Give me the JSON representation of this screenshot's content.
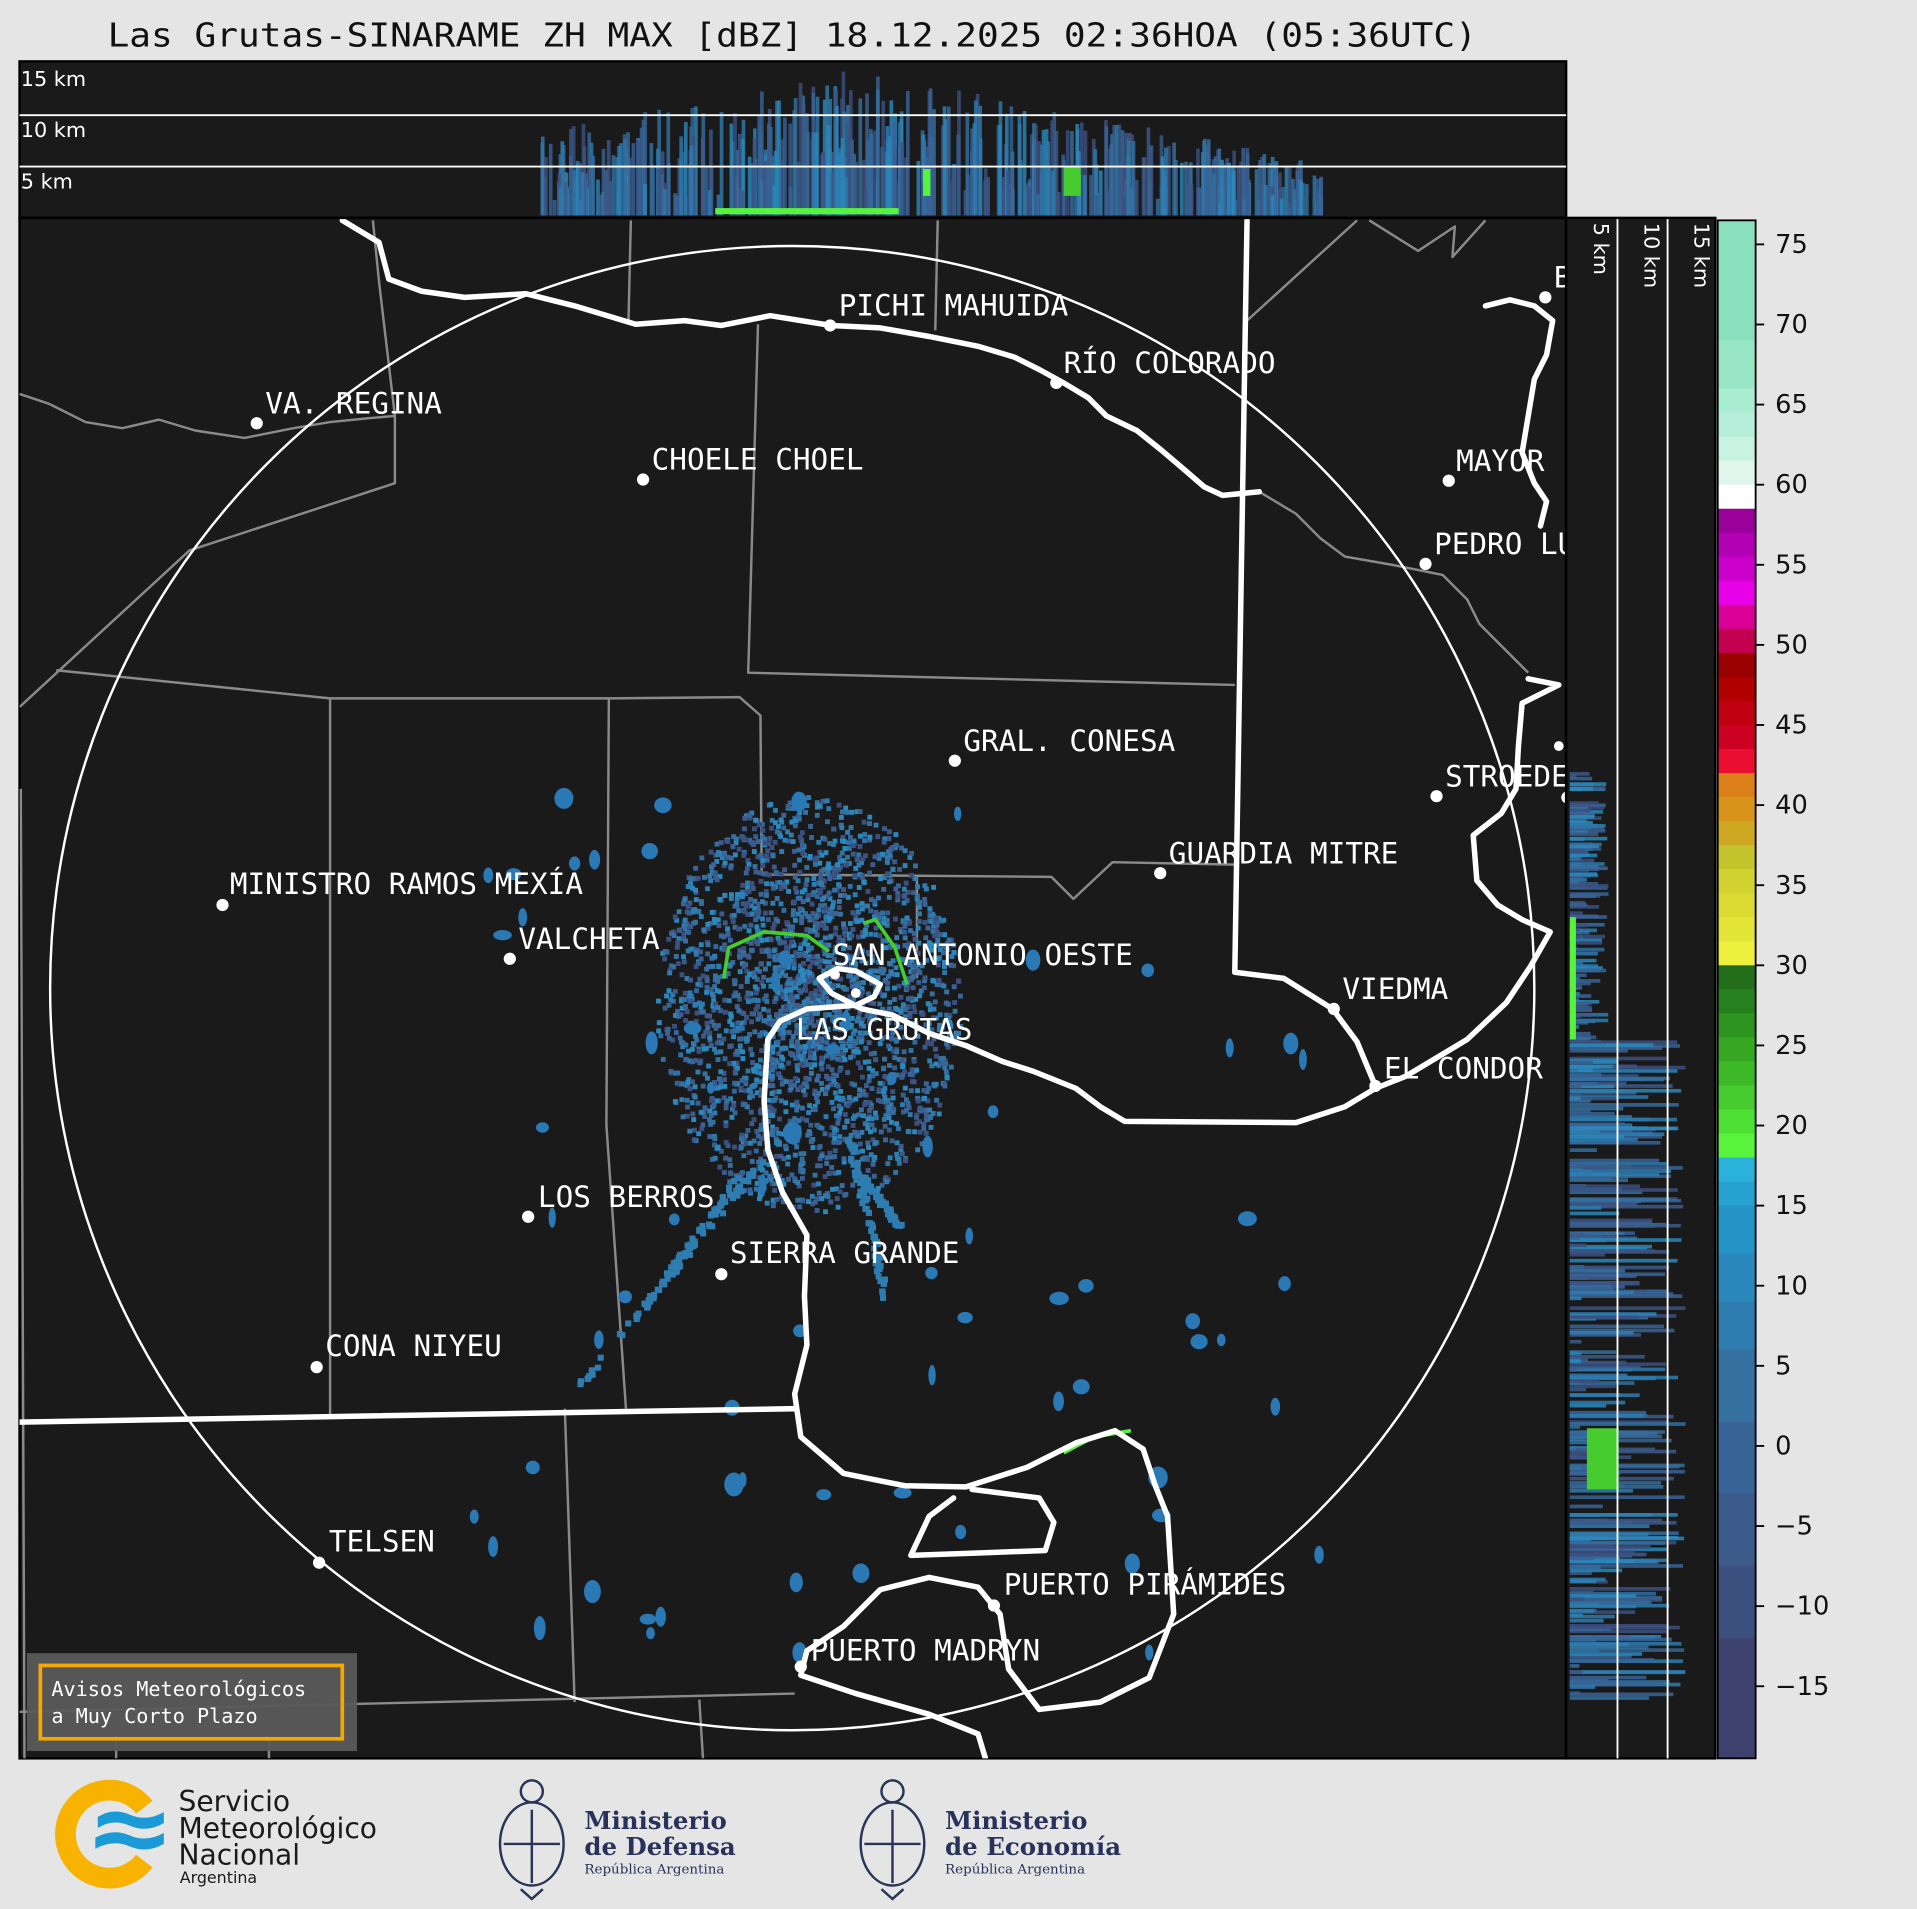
{
  "title": "Las Grutas-SINARAME ZH MAX [dBZ] 18.12.2025 02:36HOA (05:36UTC)",
  "top_panel": {
    "labels": [
      "15 km",
      "10 km",
      "5 km"
    ]
  },
  "side_panel": {
    "labels": [
      "5 km",
      "10 km",
      "15 km"
    ]
  },
  "map": {
    "background": "#1a1a1a",
    "cities": [
      {
        "name": "PICHI MAHUIDA"
      },
      {
        "name": "RÍO COLORADO"
      },
      {
        "name": "VA. REGINA"
      },
      {
        "name": "CHOELE CHOEL"
      },
      {
        "name": "MAYOR"
      },
      {
        "name": "PEDRO LU"
      },
      {
        "name": "B"
      },
      {
        "name": "GRAL. CONESA"
      },
      {
        "name": "STROEDE"
      },
      {
        "name": "GUARDIA MITRE"
      },
      {
        "name": "MINISTRO RAMOS MEXÍA"
      },
      {
        "name": "VALCHETA"
      },
      {
        "name": "SAN ANTONIO OESTE"
      },
      {
        "name": "VIEDMA"
      },
      {
        "name": "LAS GRUTAS"
      },
      {
        "name": "EL CONDOR"
      },
      {
        "name": "LOS BERROS"
      },
      {
        "name": "SIERRA GRANDE"
      },
      {
        "name": "CONA NIYEU"
      },
      {
        "name": "TELSEN"
      },
      {
        "name": "PUERTO PIRÁMIDES"
      },
      {
        "name": "PUERTO MADRYN"
      }
    ]
  },
  "colorbar": {
    "range": [
      -19.5,
      76.5
    ],
    "ticks": [
      "75",
      "70",
      "65",
      "60",
      "55",
      "50",
      "45",
      "40",
      "35",
      "30",
      "25",
      "20",
      "15",
      "10",
      "5",
      "0",
      "−5",
      "−10",
      "−15"
    ],
    "tick_values": [
      75,
      70,
      65,
      60,
      55,
      50,
      45,
      40,
      35,
      30,
      25,
      20,
      15,
      10,
      5,
      0,
      -5,
      -10,
      -15
    ],
    "bands": [
      [
        69,
        76.5,
        "#8adfbe"
      ],
      [
        66,
        69,
        "#98e5c6"
      ],
      [
        64.5,
        66,
        "#a8ecd2"
      ],
      [
        63,
        64.5,
        "#b6eedb"
      ],
      [
        61.5,
        63,
        "#c8f2e2"
      ],
      [
        60,
        61.5,
        "#e0f6ec"
      ],
      [
        58.5,
        60,
        "#ffffff"
      ],
      [
        57,
        58.5,
        "#9a009a"
      ],
      [
        55.5,
        57,
        "#b400b4"
      ],
      [
        54,
        55.5,
        "#cc00cc"
      ],
      [
        52.5,
        54,
        "#e800e8"
      ],
      [
        51,
        52.5,
        "#da0096"
      ],
      [
        49.5,
        51,
        "#c30050"
      ],
      [
        48,
        49.5,
        "#9a0000"
      ],
      [
        46.5,
        48,
        "#b00000"
      ],
      [
        45,
        46.5,
        "#c00010"
      ],
      [
        43.5,
        45,
        "#cc0020"
      ],
      [
        42,
        43.5,
        "#ea0e30"
      ],
      [
        40.5,
        42,
        "#dc801a"
      ],
      [
        39,
        40.5,
        "#d8941a"
      ],
      [
        37.5,
        39,
        "#cfa822"
      ],
      [
        36,
        37.5,
        "#c4c42c"
      ],
      [
        34.5,
        36,
        "#d2d230"
      ],
      [
        33,
        34.5,
        "#dada32"
      ],
      [
        31.5,
        33,
        "#e2e436"
      ],
      [
        30,
        31.5,
        "#eef03e"
      ],
      [
        28.5,
        30,
        "#226e1a"
      ],
      [
        27,
        28.5,
        "#27801e"
      ],
      [
        25.5,
        27,
        "#2e9420"
      ],
      [
        24,
        25.5,
        "#36a824"
      ],
      [
        22.5,
        24,
        "#3eba28"
      ],
      [
        21,
        22.5,
        "#46cc2e"
      ],
      [
        19.5,
        21,
        "#4ee034"
      ],
      [
        18,
        19.5,
        "#58f43c"
      ],
      [
        16.5,
        18,
        "#2ab2da"
      ],
      [
        15,
        16.5,
        "#26a2d0"
      ],
      [
        12,
        15,
        "#2494c6"
      ],
      [
        9,
        12,
        "#2a88bc"
      ],
      [
        6,
        9,
        "#2e7cb0"
      ],
      [
        1.5,
        6,
        "#3470a0"
      ],
      [
        -3,
        1.5,
        "#386498"
      ],
      [
        -7.5,
        -3,
        "#3c5a8a"
      ],
      [
        -12,
        -7.5,
        "#3c5080"
      ],
      [
        -19.5,
        -12,
        "#3e406e"
      ]
    ]
  },
  "legend_box": {
    "line1": "Avisos Meteorológicos",
    "line2": "a Muy Corto Plazo",
    "border_color": "#f5a800"
  },
  "logos": {
    "smn": {
      "line1": "Servicio",
      "line2": "Meteorológico",
      "line3": "Nacional",
      "line4": "Argentina"
    },
    "defensa": {
      "line1": "Ministerio",
      "line2": "de Defensa",
      "line3": "República Argentina"
    },
    "economia": {
      "line1": "Ministerio",
      "line2": "de Economía",
      "line3": "República Argentina"
    }
  }
}
